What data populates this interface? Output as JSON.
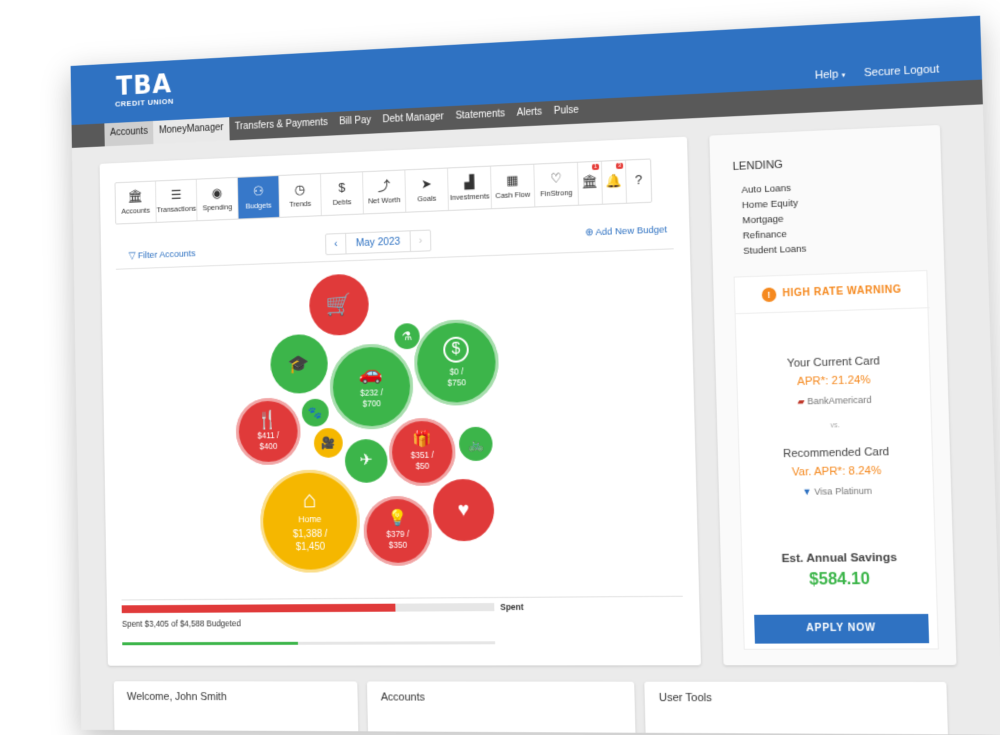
{
  "brand": {
    "logo": "TBA",
    "sub": "CREDIT UNION"
  },
  "toplinks": {
    "help": "Help",
    "logout": "Secure Logout"
  },
  "nav": [
    "Accounts",
    "MoneyManager",
    "Transfers & Payments",
    "Bill Pay",
    "Debt Manager",
    "Statements",
    "Alerts",
    "Pulse"
  ],
  "tools": [
    {
      "label": "Accounts",
      "icon": "🏛"
    },
    {
      "label": "Transactions",
      "icon": "☰"
    },
    {
      "label": "Spending",
      "icon": "◉"
    },
    {
      "label": "Budgets",
      "icon": "⚇"
    },
    {
      "label": "Trends",
      "icon": "◷"
    },
    {
      "label": "Debts",
      "icon": "$"
    },
    {
      "label": "Net Worth",
      "icon": "⤴"
    },
    {
      "label": "Goals",
      "icon": "➤"
    },
    {
      "label": "Investments",
      "icon": "▟"
    },
    {
      "label": "Cash Flow",
      "icon": "▦"
    },
    {
      "label": "FinStrong",
      "icon": "♡"
    }
  ],
  "badges": {
    "bank": "1",
    "bell": "3"
  },
  "filter": "Filter Accounts",
  "month": "May 2023",
  "add_budget": "Add New Budget",
  "budget": {
    "bubbles": {
      "cart": {
        "icon": "🛒"
      },
      "grad": {
        "icon": "🎓"
      },
      "auto": {
        "icon": "🚗",
        "text": "$232 /\n$700"
      },
      "money": {
        "icon": "$",
        "text": "$0 /\n$750"
      },
      "drink": {
        "icon": "⚗"
      },
      "dining": {
        "icon": "🍴",
        "text": "$411 /\n$400"
      },
      "pet": {
        "icon": "🐾"
      },
      "film": {
        "icon": "🎥"
      },
      "travel": {
        "icon": "✈"
      },
      "gift": {
        "icon": "🎁",
        "text": "$351 /\n$50"
      },
      "bike": {
        "icon": "🚲"
      },
      "home": {
        "icon": "⌂",
        "name": "Home",
        "text": "$1,388 /\n$1,450"
      },
      "util": {
        "icon": "💡",
        "text": "$379 /\n$350"
      },
      "health": {
        "icon": "♥"
      }
    },
    "spent_label": "Spent",
    "spent_text": "Spent $3,405 of $4,588 Budgeted",
    "spent_fraction": 0.742,
    "income_fraction": 0.48
  },
  "lending": {
    "title": "LENDING",
    "items": [
      "Auto Loans",
      "Home Equity",
      "Mortgage",
      "Refinance",
      "Student Loans"
    ]
  },
  "promo": {
    "warning": "HIGH RATE WARNING",
    "current_label": "Your Current Card",
    "current_apr": "APR*: 21.24%",
    "current_bank": "BankAmericard",
    "vs": "vs.",
    "rec_label": "Recommended Card",
    "rec_apr": "Var. APR*: 8.24%",
    "rec_bank": "Visa Platinum",
    "save_label": "Est. Annual Savings",
    "save_value": "$584.10",
    "apply": "APPLY NOW"
  },
  "bottom": {
    "welcome": "Welcome, John Smith",
    "accounts": "Accounts",
    "tools": "User Tools"
  },
  "colors": {
    "red": "#e03a3a",
    "green": "#3cb54a",
    "yellow": "#f5b700",
    "blue": "#2f72c2",
    "orange": "#f5891f"
  }
}
